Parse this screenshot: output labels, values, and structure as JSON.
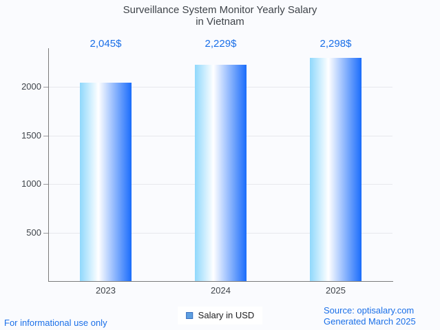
{
  "title": {
    "line1": "Surveillance System Monitor Yearly Salary",
    "line2": "in Vietnam"
  },
  "chart_data": {
    "type": "bar",
    "categories": [
      "2023",
      "2024",
      "2025"
    ],
    "values": [
      2045,
      2229,
      2298
    ],
    "value_labels": [
      "2,045$",
      "2,229$",
      "2,298$"
    ],
    "series": [
      {
        "name": "Salary in USD",
        "values": [
          2045,
          2229,
          2298
        ]
      }
    ],
    "title": "Surveillance System Monitor Yearly Salary in Vietnam",
    "xlabel": "",
    "ylabel": "",
    "y_ticks": [
      500,
      1000,
      1500,
      2000
    ],
    "ylim": [
      0,
      2500
    ],
    "grid": true,
    "legend_position": "bottom"
  },
  "legend": {
    "label": "Salary in USD"
  },
  "footer": {
    "left": "For informational use only",
    "source": "Source: optisalary.com",
    "generated": "Generated March 2025"
  },
  "colors": {
    "background": "#fafbfe",
    "title_text": "#3e4349",
    "accent_text": "#1a6fe8",
    "axis": "#7a7a7a",
    "grid": "#e7e8ec",
    "bar_gradient_left": "#8fd8fc",
    "bar_gradient_mid": "#ffffff",
    "bar_gradient_right": "#1a6cfb",
    "legend_swatch_fill": "#5e9fe0",
    "legend_swatch_border": "#3a6fc0"
  }
}
